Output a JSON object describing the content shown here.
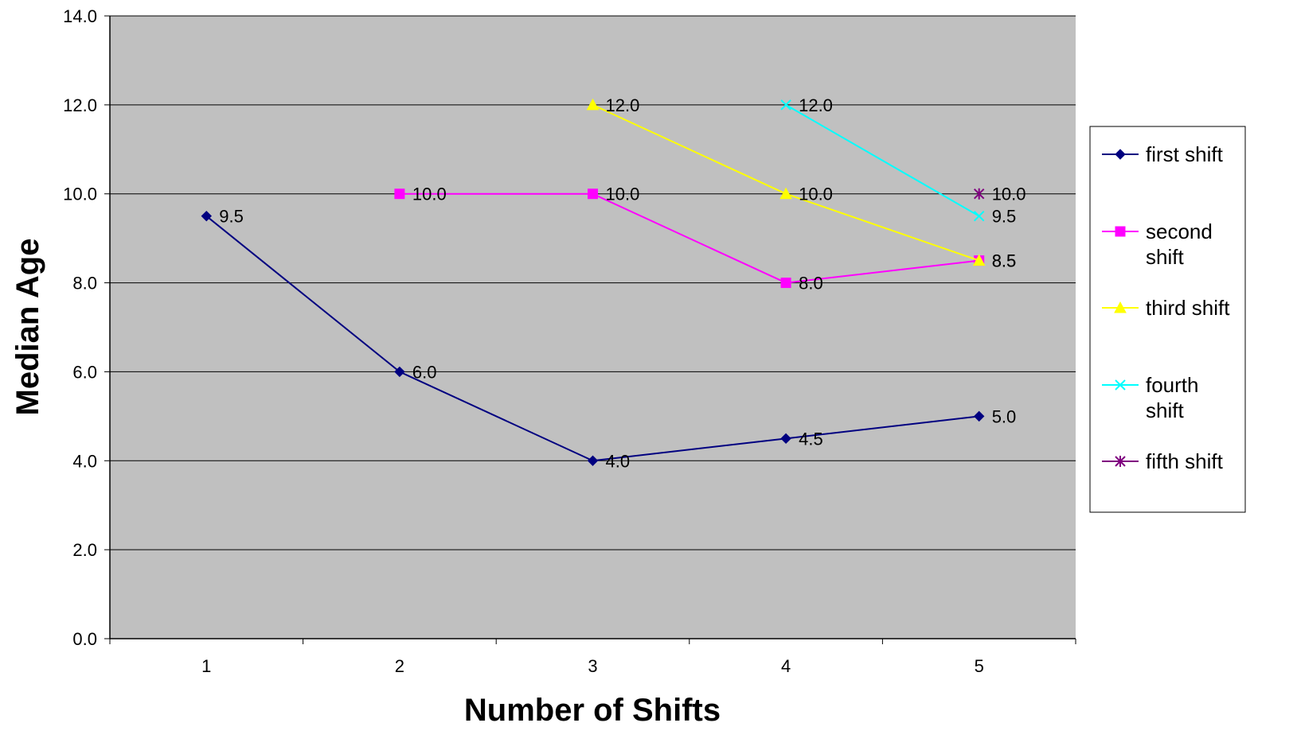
{
  "chart_data": {
    "type": "line",
    "title": "",
    "xlabel": "Number of Shifts",
    "ylabel": "Median Age",
    "categories": [
      "1",
      "2",
      "3",
      "4",
      "5"
    ],
    "ylim": [
      0,
      14
    ],
    "yticks": [
      "0.0",
      "2.0",
      "4.0",
      "6.0",
      "8.0",
      "10.0",
      "12.0",
      "14.0"
    ],
    "grid": true,
    "plot_background": "#c0c0c0",
    "legend_position": "right",
    "series": [
      {
        "name": "first shift",
        "color": "#000080",
        "marker": "diamond",
        "values": [
          9.5,
          6.0,
          4.0,
          4.5,
          5.0
        ],
        "labels": [
          "9.5",
          "6.0",
          "4.0",
          "4.5",
          "5.0"
        ]
      },
      {
        "name": "second shift",
        "color": "#ff00ff",
        "marker": "square",
        "values": [
          null,
          10.0,
          10.0,
          8.0,
          8.5
        ],
        "labels": [
          null,
          "10.0",
          "10.0",
          "8.0",
          "8.5"
        ]
      },
      {
        "name": "third shift",
        "color": "#ffff00",
        "marker": "triangle",
        "values": [
          null,
          null,
          12.0,
          10.0,
          8.5
        ],
        "labels": [
          null,
          null,
          "12.0",
          "10.0",
          "8.5"
        ]
      },
      {
        "name": "fourth shift",
        "color": "#00ffff",
        "marker": "x",
        "values": [
          null,
          null,
          null,
          12.0,
          9.5
        ],
        "labels": [
          null,
          null,
          null,
          "12.0",
          "9.5"
        ]
      },
      {
        "name": "fifth shift",
        "color": "#800080",
        "marker": "star",
        "values": [
          null,
          null,
          null,
          null,
          10.0
        ],
        "labels": [
          null,
          null,
          null,
          null,
          "10.0"
        ]
      }
    ]
  }
}
